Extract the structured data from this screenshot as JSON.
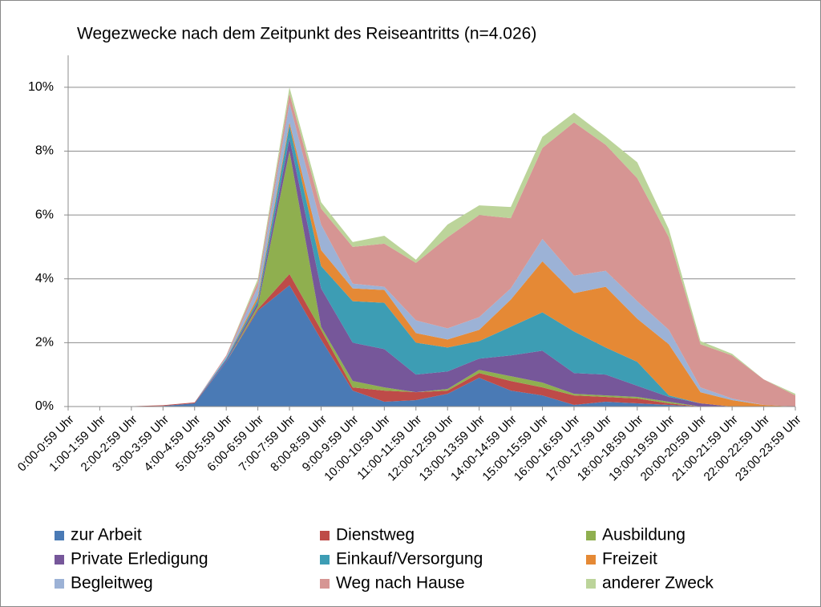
{
  "chart_data": {
    "type": "stacked_area",
    "title": "Wegezwecke nach dem Zeitpunkt des Reiseantritts (n=4.026)",
    "categories": [
      "0:00-0:59 Uhr",
      "1:00-1:59 Uhr",
      "2:00-2:59 Uhr",
      "3:00-3:59 Uhr",
      "4:00-4:59 Uhr",
      "5:00-5:59 Uhr",
      "6:00-6:59 Uhr",
      "7:00-7:59 Uhr",
      "8:00-8:59 Uhr",
      "9:00-9:59 Uhr",
      "10:00-10:59 Uhr",
      "11:00-11:59 Uhr",
      "12:00-12:59 Uhr",
      "13:00-13:59 Uhr",
      "14:00-14:59 Uhr",
      "15:00-15:59 Uhr",
      "16:00-16:59 Uhr",
      "17:00-17:59 Uhr",
      "18:00-18:59 Uhr",
      "19:00-19:59 Uhr",
      "20:00-20:59 Uhr",
      "21:00-21:59 Uhr",
      "22:00-22:59 Uhr",
      "23:00-23:59 Uhr"
    ],
    "series": [
      {
        "name": "zur Arbeit",
        "color": "#4a7ab5",
        "values": [
          0,
          0,
          0,
          0.02,
          0.1,
          1.4,
          3.0,
          3.8,
          2.1,
          0.5,
          0.15,
          0.2,
          0.4,
          0.9,
          0.5,
          0.35,
          0.05,
          0.15,
          0.1,
          0.05,
          0,
          0,
          0,
          0
        ]
      },
      {
        "name": "Dienstweg",
        "color": "#be4b48",
        "values": [
          0,
          0,
          0.01,
          0.02,
          0.03,
          0,
          0.05,
          0.35,
          0.3,
          0.1,
          0.35,
          0.25,
          0.1,
          0.15,
          0.3,
          0.25,
          0.3,
          0.15,
          0.15,
          0.05,
          0,
          0,
          0,
          0
        ]
      },
      {
        "name": "Ausbildung",
        "color": "#8faf4f",
        "values": [
          0,
          0,
          0,
          0,
          0,
          0,
          0.1,
          3.85,
          0.1,
          0.2,
          0.1,
          0,
          0.05,
          0.1,
          0.15,
          0.15,
          0.05,
          0.05,
          0.05,
          0.05,
          0,
          0,
          0,
          0
        ]
      },
      {
        "name": "Private Erledigung",
        "color": "#76579a",
        "values": [
          0,
          0,
          0,
          0,
          0,
          0.05,
          0.1,
          0.4,
          1.2,
          1.2,
          1.2,
          0.55,
          0.55,
          0.35,
          0.65,
          1.0,
          0.65,
          0.65,
          0.35,
          0.15,
          0.1,
          0,
          0,
          0
        ]
      },
      {
        "name": "Einkauf/Versorgung",
        "color": "#3d9db4",
        "values": [
          0,
          0,
          0,
          0,
          0,
          0.05,
          0.1,
          0.4,
          0.7,
          1.3,
          1.45,
          1.0,
          0.75,
          0.55,
          0.9,
          1.2,
          1.3,
          0.85,
          0.75,
          0.05,
          0,
          0,
          0,
          0
        ]
      },
      {
        "name": "Freizeit",
        "color": "#e58935",
        "values": [
          0,
          0,
          0,
          0,
          0,
          0,
          0.1,
          0.1,
          0.5,
          0.4,
          0.4,
          0.3,
          0.25,
          0.35,
          0.85,
          1.6,
          1.2,
          1.9,
          1.35,
          1.6,
          0.35,
          0.2,
          0.05,
          0
        ]
      },
      {
        "name": "Begleitweg",
        "color": "#9cb2d6",
        "values": [
          0,
          0,
          0,
          0,
          0,
          0.05,
          0.3,
          0.6,
          0.8,
          0.15,
          0.1,
          0.4,
          0.35,
          0.4,
          0.35,
          0.7,
          0.55,
          0.5,
          0.55,
          0.45,
          0.15,
          0.05,
          0,
          0
        ]
      },
      {
        "name": "Weg nach Hause",
        "color": "#d69593",
        "values": [
          0,
          0,
          0,
          0,
          0,
          0.05,
          0.15,
          0.3,
          0.5,
          1.15,
          1.35,
          1.8,
          2.85,
          3.2,
          2.2,
          2.85,
          4.8,
          3.95,
          3.85,
          2.9,
          1.35,
          1.35,
          0.8,
          0.35
        ]
      },
      {
        "name": "anderer Zweck",
        "color": "#bcd49a",
        "values": [
          0,
          0,
          0,
          0,
          0,
          0,
          0.1,
          0.2,
          0.2,
          0.15,
          0.25,
          0.1,
          0.4,
          0.3,
          0.35,
          0.35,
          0.3,
          0.25,
          0.5,
          0.25,
          0.1,
          0.05,
          0,
          0.05
        ]
      }
    ],
    "ylim": [
      0,
      11
    ],
    "yticks": [
      {
        "value": 0,
        "label": "0%"
      },
      {
        "value": 2,
        "label": "2%"
      },
      {
        "value": 4,
        "label": "4%"
      },
      {
        "value": 6,
        "label": "6%"
      },
      {
        "value": 8,
        "label": "8%"
      },
      {
        "value": 10,
        "label": "10%"
      }
    ],
    "grid": true,
    "legend": "bottom"
  }
}
